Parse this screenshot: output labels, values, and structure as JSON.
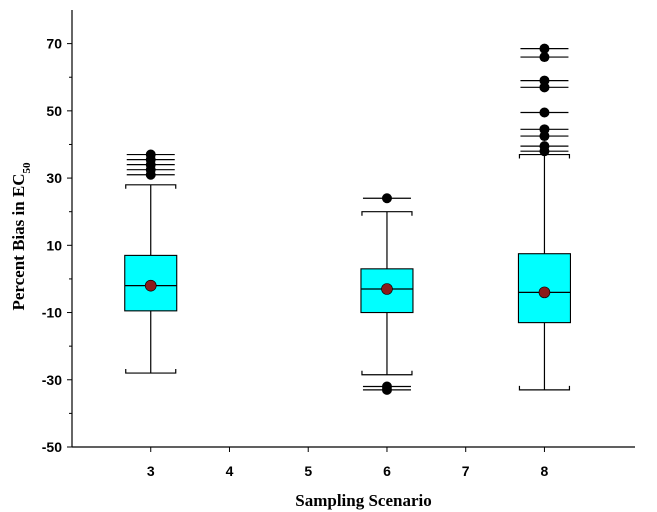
{
  "chart_data": {
    "type": "box",
    "xlabel": "Sampling Scenario",
    "ylabel_main": "Percent Bias in EC",
    "ylabel_subscript": "50",
    "ylim": [
      -50,
      80
    ],
    "yticks": [
      -50,
      -30,
      -10,
      10,
      30,
      50,
      70
    ],
    "xticks": [
      3,
      4,
      5,
      6,
      7,
      8
    ],
    "box_fill": "#00ffff",
    "mean_color": "#8b1a1a",
    "outlier_color": "#000000",
    "series": [
      {
        "x": 3,
        "whisker_low": -28,
        "q1": -9.5,
        "median": -2,
        "q3": 7,
        "whisker_high": 28,
        "mean": -2,
        "outliers": [
          31,
          32.5,
          34,
          35.5,
          37
        ]
      },
      {
        "x": 6,
        "whisker_low": -28.5,
        "q1": -10,
        "median": -3,
        "q3": 3,
        "whisker_high": 20,
        "mean": -3,
        "outliers": [
          -32,
          -33,
          24
        ]
      },
      {
        "x": 8,
        "whisker_low": -33,
        "q1": -13,
        "median": -4,
        "q3": 7.5,
        "whisker_high": 37,
        "mean": -4,
        "outliers": [
          38,
          39.5,
          42.5,
          44.5,
          49.5,
          57,
          59,
          66,
          68.5
        ]
      }
    ]
  }
}
